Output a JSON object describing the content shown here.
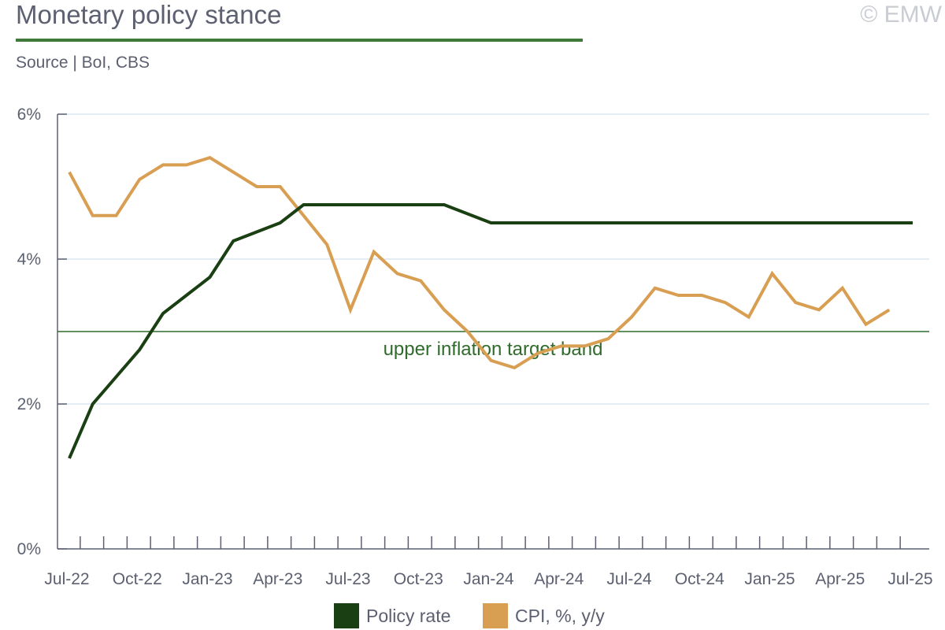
{
  "header": {
    "title": "Monetary policy stance",
    "copyright": "© EMW",
    "source": "Source | BoI, CBS"
  },
  "colors": {
    "policy_rate": "#1a3f12",
    "cpi": "#d89e52",
    "target_band": "#2f6b2b",
    "grid": "#dce6f0",
    "axis": "#5c6070"
  },
  "chart_data": {
    "type": "line",
    "title": "Monetary policy stance",
    "x_tick_labels": [
      "Jul-22",
      "Oct-22",
      "Jan-23",
      "Apr-23",
      "Jul-23",
      "Oct-23",
      "Jan-24",
      "Apr-24",
      "Jul-24",
      "Oct-24",
      "Jan-25",
      "Apr-25",
      "Jul-25"
    ],
    "y_tick_labels": [
      "0%",
      "2%",
      "4%",
      "6%"
    ],
    "ylim": [
      0,
      6
    ],
    "grid": true,
    "legend_position": "bottom",
    "x": [
      "Jul-22",
      "Aug-22",
      "Sep-22",
      "Oct-22",
      "Nov-22",
      "Dec-22",
      "Jan-23",
      "Feb-23",
      "Mar-23",
      "Apr-23",
      "May-23",
      "Jun-23",
      "Jul-23",
      "Aug-23",
      "Sep-23",
      "Oct-23",
      "Nov-23",
      "Dec-23",
      "Jan-24",
      "Feb-24",
      "Mar-24",
      "Apr-24",
      "May-24",
      "Jun-24",
      "Jul-24",
      "Aug-24",
      "Sep-24",
      "Oct-24",
      "Nov-24",
      "Dec-24",
      "Jan-25",
      "Feb-25",
      "Mar-25",
      "Apr-25",
      "May-25",
      "Jun-25",
      "Jul-25"
    ],
    "series": [
      {
        "name": "Policy rate",
        "values": [
          1.25,
          2.0,
          2.375,
          2.75,
          3.25,
          3.5,
          3.75,
          4.25,
          4.375,
          4.5,
          4.75,
          4.75,
          4.75,
          4.75,
          4.75,
          4.75,
          4.75,
          4.625,
          4.5,
          4.5,
          4.5,
          4.5,
          4.5,
          4.5,
          4.5,
          4.5,
          4.5,
          4.5,
          4.5,
          4.5,
          4.5,
          4.5,
          4.5,
          4.5,
          4.5,
          4.5,
          4.5
        ]
      },
      {
        "name": "CPI, %, y/y",
        "values": [
          5.2,
          4.6,
          4.6,
          5.1,
          5.3,
          5.3,
          5.4,
          5.2,
          5.0,
          5.0,
          4.6,
          4.2,
          3.3,
          4.1,
          3.8,
          3.7,
          3.3,
          3.0,
          2.6,
          2.5,
          2.7,
          2.8,
          2.8,
          2.9,
          3.2,
          3.6,
          3.5,
          3.5,
          3.4,
          3.2,
          3.8,
          3.4,
          3.3,
          3.6,
          3.1,
          3.3,
          null
        ]
      }
    ],
    "reference_line": {
      "value": 3.0,
      "label": "upper inflation target band"
    }
  }
}
